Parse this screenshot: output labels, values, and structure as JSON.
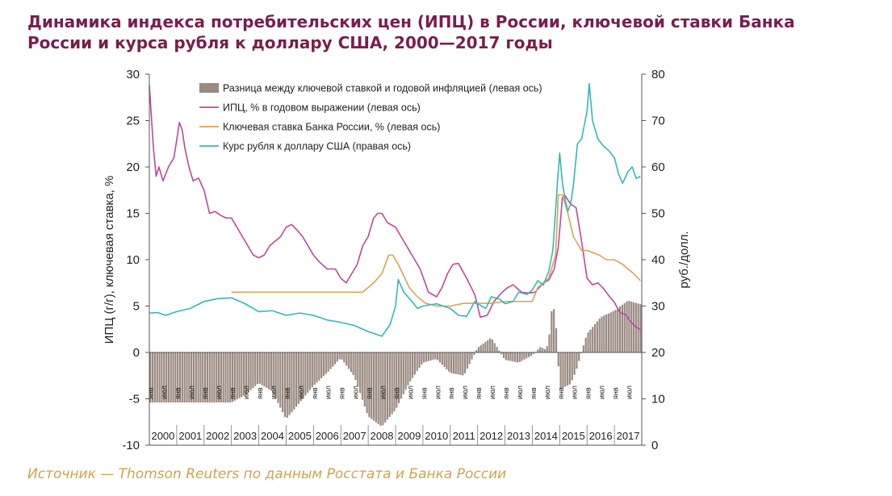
{
  "title": "Динамика индекса потребительских цен (ИПЦ) в России, ключевой ставки Банка России и курса рубля к доллару США, 2000—2017 годы",
  "source": "Источник — Thomson Reuters по данным Росстата и Банка России",
  "chart_data": {
    "type": "line",
    "x_range": [
      2000.0,
      2018.0
    ],
    "ylim_left": [
      -10,
      30
    ],
    "ylim_right": [
      0,
      80
    ],
    "yticks_left": [
      "30",
      "25",
      "20",
      "15",
      "10",
      "5",
      "0",
      "-5",
      "-10"
    ],
    "yticks_right": [
      "80",
      "70",
      "60",
      "50",
      "40",
      "30",
      "20",
      "10",
      "0"
    ],
    "ylabel_left": "ИПЦ (г/г), ключевая ставка, %",
    "ylabel_right": "руб./долл.",
    "month_labels": [
      "янв",
      "июл"
    ],
    "years": [
      "2000",
      "2001",
      "2002",
      "2003",
      "2004",
      "2005",
      "2006",
      "2007",
      "2008",
      "2009",
      "2010",
      "2011",
      "2012",
      "2013",
      "2014",
      "2015",
      "2016",
      "2017"
    ],
    "colors": {
      "gap": "#9b8b82",
      "cpi": "#c0479a",
      "rate": "#e0a050",
      "usd": "#33b8b8"
    },
    "series": [
      {
        "name": "Разница между ключевой ставкой и годовой инфляцией (левая ось)",
        "kind": "bar",
        "axis": "left",
        "color": "#9b8b82",
        "x": [
          2000.0,
          2003.0,
          2003.5,
          2004.0,
          2004.5,
          2005.0,
          2005.5,
          2006.0,
          2006.5,
          2007.0,
          2007.5,
          2008.0,
          2008.5,
          2009.0,
          2009.5,
          2010.0,
          2010.5,
          2011.0,
          2011.5,
          2012.0,
          2012.5,
          2013.0,
          2013.5,
          2014.0,
          2014.3,
          2014.5,
          2014.6,
          2014.75,
          2014.9,
          2015.0,
          2015.4,
          2015.6,
          2016.0,
          2016.5,
          2017.0,
          2017.5,
          2017.95
        ],
        "y": [
          -5.4,
          -5.4,
          -4.6,
          -3.3,
          -4.2,
          -7.2,
          -5.4,
          -3.6,
          -2.2,
          -0.6,
          -2.6,
          -6.9,
          -8.0,
          -6.2,
          -3.3,
          -1.1,
          -0.7,
          -2.2,
          -2.5,
          0.5,
          1.6,
          -0.8,
          -1.1,
          -0.3,
          0.6,
          0.3,
          1.2,
          5.7,
          2.0,
          -4.0,
          -3.4,
          -2.0,
          2.0,
          3.8,
          4.5,
          5.6,
          5.2
        ]
      },
      {
        "name": "ИПЦ, % в годовом выражении (левая ось)",
        "kind": "line",
        "axis": "left",
        "color": "#c0479a",
        "x": [
          2000.0,
          2000.15,
          2000.25,
          2000.35,
          2000.5,
          2000.7,
          2000.9,
          2001.1,
          2001.2,
          2001.3,
          2001.45,
          2001.6,
          2001.8,
          2002.0,
          2002.2,
          2002.4,
          2002.6,
          2002.8,
          2003.0,
          2003.2,
          2003.5,
          2003.8,
          2004.0,
          2004.2,
          2004.4,
          2004.6,
          2004.8,
          2005.0,
          2005.2,
          2005.4,
          2005.6,
          2005.8,
          2006.0,
          2006.2,
          2006.5,
          2006.8,
          2007.0,
          2007.2,
          2007.4,
          2007.6,
          2007.8,
          2008.0,
          2008.2,
          2008.35,
          2008.5,
          2008.7,
          2009.0,
          2009.3,
          2009.6,
          2009.9,
          2010.2,
          2010.5,
          2010.7,
          2010.9,
          2011.1,
          2011.3,
          2011.6,
          2011.9,
          2012.1,
          2012.35,
          2012.6,
          2012.9,
          2013.1,
          2013.3,
          2013.6,
          2013.9,
          2014.1,
          2014.4,
          2014.6,
          2014.8,
          2014.95,
          2015.1,
          2015.2,
          2015.4,
          2015.6,
          2015.8,
          2016.0,
          2016.2,
          2016.4,
          2016.6,
          2016.8,
          2017.0,
          2017.2,
          2017.4,
          2017.6,
          2017.8,
          2017.95
        ],
        "y": [
          28.8,
          22.0,
          19.0,
          20.0,
          18.5,
          20.0,
          21.0,
          24.8,
          24.0,
          22.0,
          20.0,
          18.5,
          18.8,
          17.5,
          15.0,
          15.2,
          14.8,
          14.5,
          14.5,
          13.5,
          12.0,
          10.5,
          10.2,
          10.5,
          11.5,
          12.0,
          12.5,
          13.5,
          13.8,
          13.2,
          12.5,
          11.5,
          10.5,
          9.8,
          9.0,
          9.0,
          8.0,
          7.5,
          8.5,
          9.5,
          11.5,
          12.5,
          14.5,
          15.0,
          15.0,
          14.0,
          13.5,
          12.0,
          10.5,
          9.0,
          6.5,
          6.0,
          7.0,
          8.5,
          9.5,
          9.6,
          8.0,
          6.2,
          3.8,
          4.0,
          5.5,
          6.5,
          7.0,
          7.3,
          6.5,
          6.4,
          6.5,
          7.5,
          7.8,
          9.0,
          11.4,
          16.7,
          16.9,
          16.0,
          15.6,
          12.0,
          8.0,
          7.3,
          7.5,
          6.9,
          6.1,
          5.4,
          4.3,
          4.1,
          3.3,
          2.7,
          2.5
        ]
      },
      {
        "name": "Ключевая ставка Банка России, % (левая ось)",
        "kind": "line",
        "axis": "left",
        "color": "#e0a050",
        "x": [
          2003.0,
          2005.5,
          2007.0,
          2007.8,
          2008.2,
          2008.5,
          2008.75,
          2008.9,
          2009.1,
          2009.5,
          2009.8,
          2010.1,
          2010.4,
          2010.5,
          2011.0,
          2011.5,
          2012.0,
          2012.5,
          2013.0,
          2013.8,
          2014.0,
          2014.2,
          2014.4,
          2014.6,
          2014.85,
          2014.95,
          2015.1,
          2015.3,
          2015.5,
          2015.7,
          2015.8,
          2016.0,
          2016.45,
          2016.7,
          2017.0,
          2017.3,
          2017.5,
          2017.7,
          2017.95
        ],
        "y": [
          6.5,
          6.5,
          6.5,
          6.5,
          7.5,
          8.5,
          10.5,
          10.5,
          9.5,
          7.0,
          6.0,
          5.3,
          5.1,
          5.0,
          5.0,
          5.3,
          5.3,
          5.3,
          5.5,
          5.5,
          5.5,
          7.0,
          7.5,
          8.0,
          10.5,
          17.0,
          17.0,
          15.0,
          12.5,
          11.5,
          11.0,
          11.0,
          10.5,
          10.0,
          10.0,
          9.5,
          9.0,
          8.5,
          7.75
        ]
      },
      {
        "name": "Курс рубля к доллару США (правая ось)",
        "kind": "line",
        "axis": "right",
        "color": "#33b8b8",
        "x": [
          2000.0,
          2000.3,
          2000.6,
          2001.0,
          2001.5,
          2002.0,
          2002.5,
          2003.0,
          2003.5,
          2004.0,
          2004.5,
          2005.0,
          2005.5,
          2006.0,
          2006.5,
          2007.0,
          2007.5,
          2008.0,
          2008.5,
          2008.8,
          2009.0,
          2009.1,
          2009.3,
          2009.6,
          2009.8,
          2010.0,
          2010.5,
          2011.0,
          2011.3,
          2011.6,
          2011.9,
          2012.0,
          2012.3,
          2012.5,
          2012.8,
          2013.0,
          2013.3,
          2013.5,
          2013.8,
          2014.0,
          2014.2,
          2014.4,
          2014.5,
          2014.6,
          2014.75,
          2014.9,
          2015.0,
          2015.1,
          2015.2,
          2015.3,
          2015.4,
          2015.5,
          2015.65,
          2015.8,
          2016.0,
          2016.08,
          2016.2,
          2016.4,
          2016.6,
          2016.8,
          2017.0,
          2017.15,
          2017.3,
          2017.5,
          2017.65,
          2017.8,
          2017.95
        ],
        "y": [
          28.5,
          28.6,
          28.0,
          28.8,
          29.5,
          31.0,
          31.6,
          31.8,
          30.5,
          28.8,
          29.0,
          28.0,
          28.5,
          28.0,
          27.0,
          26.5,
          25.8,
          24.5,
          23.5,
          26.0,
          30.0,
          35.7,
          33.0,
          31.0,
          29.5,
          30.0,
          30.5,
          29.5,
          28.0,
          27.8,
          31.0,
          30.5,
          29.5,
          32.0,
          31.5,
          30.5,
          31.0,
          33.0,
          32.5,
          33.5,
          35.5,
          34.5,
          36.0,
          37.5,
          42.0,
          55.0,
          63.0,
          56.5,
          53.0,
          50.5,
          52.0,
          56.0,
          65.0,
          66.0,
          72.0,
          78.0,
          70.0,
          66.0,
          64.5,
          63.5,
          62.0,
          58.5,
          56.5,
          59.0,
          60.0,
          57.5,
          58.0
        ]
      }
    ]
  }
}
